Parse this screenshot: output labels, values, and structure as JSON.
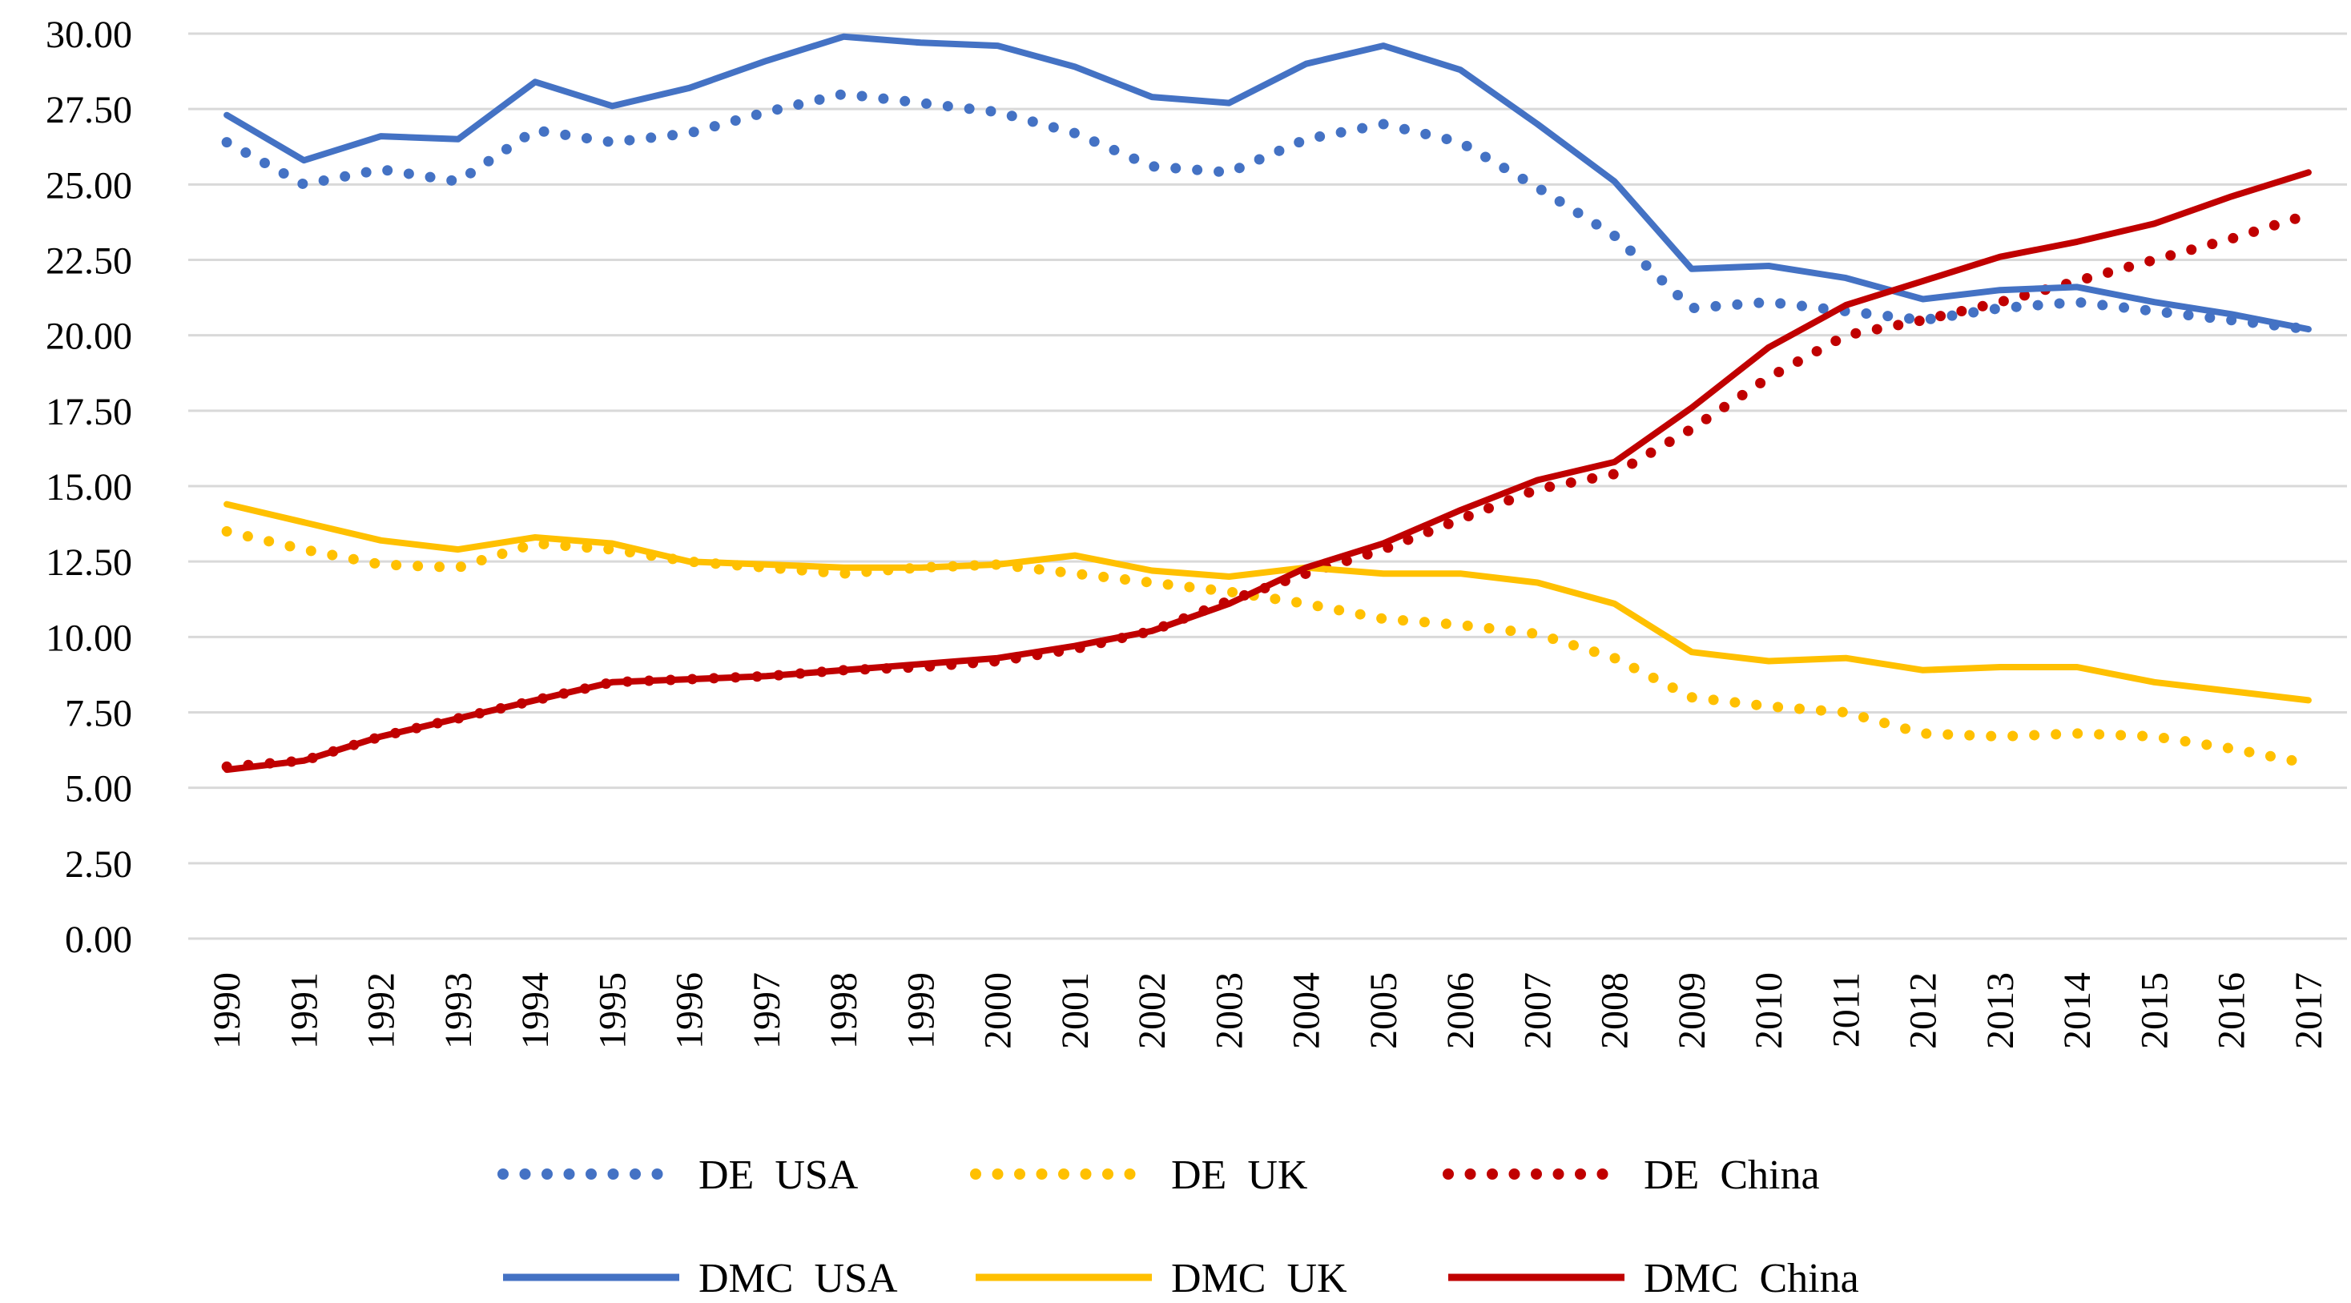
{
  "chart_data": {
    "type": "line",
    "title": "",
    "xlabel": "",
    "ylabel": "",
    "ylim": [
      0,
      30
    ],
    "y_ticks": [
      "0.00",
      "2.50",
      "5.00",
      "7.50",
      "10.00",
      "12.50",
      "15.00",
      "17.50",
      "20.00",
      "22.50",
      "25.00",
      "27.50",
      "30.00"
    ],
    "grid": "horizontal",
    "legend_position": "bottom",
    "x": [
      "1990",
      "1991",
      "1992",
      "1993",
      "1994",
      "1995",
      "1996",
      "1997",
      "1998",
      "1999",
      "2000",
      "2001",
      "2002",
      "2003",
      "2004",
      "2005",
      "2006",
      "2007",
      "2008",
      "2009",
      "2010",
      "2011",
      "2012",
      "2013",
      "2014",
      "2015",
      "2016",
      "2017"
    ],
    "series": [
      {
        "name": "DE  USA",
        "style": "dotted",
        "color": "#4472c4",
        "values": [
          26.4,
          25.0,
          25.5,
          25.1,
          26.8,
          26.4,
          26.7,
          27.4,
          28.0,
          27.7,
          27.4,
          26.7,
          25.6,
          25.4,
          26.5,
          27.0,
          26.4,
          24.9,
          23.3,
          20.9,
          21.1,
          20.8,
          20.5,
          20.9,
          21.1,
          20.8,
          20.5,
          20.2
        ]
      },
      {
        "name": "DE  UK",
        "style": "dotted",
        "color": "#ffc000",
        "values": [
          13.5,
          12.9,
          12.4,
          12.3,
          13.1,
          12.9,
          12.5,
          12.3,
          12.1,
          12.3,
          12.4,
          12.1,
          11.8,
          11.5,
          11.1,
          10.6,
          10.4,
          10.1,
          9.3,
          8.0,
          7.7,
          7.5,
          6.8,
          6.7,
          6.8,
          6.7,
          6.3,
          5.8
        ]
      },
      {
        "name": "DE  China",
        "style": "dotted",
        "color": "#c00000",
        "values": [
          5.7,
          5.9,
          6.7,
          7.3,
          7.9,
          8.5,
          8.6,
          8.7,
          8.9,
          9.0,
          9.2,
          9.6,
          10.2,
          11.2,
          12.1,
          12.9,
          13.9,
          14.9,
          15.4,
          16.9,
          18.6,
          20.0,
          20.5,
          21.1,
          21.8,
          22.5,
          23.2,
          24.0
        ]
      },
      {
        "name": "DMC  USA",
        "style": "solid",
        "color": "#4472c4",
        "values": [
          27.3,
          25.8,
          26.6,
          26.5,
          28.4,
          27.6,
          28.2,
          29.1,
          29.9,
          29.7,
          29.6,
          28.9,
          27.9,
          27.7,
          29.0,
          29.6,
          28.8,
          27.0,
          25.1,
          22.2,
          22.3,
          21.9,
          21.2,
          21.5,
          21.6,
          21.1,
          20.7,
          20.2
        ]
      },
      {
        "name": "DMC  UK",
        "style": "solid",
        "color": "#ffc000",
        "values": [
          14.4,
          13.8,
          13.2,
          12.9,
          13.3,
          13.1,
          12.5,
          12.4,
          12.3,
          12.3,
          12.4,
          12.7,
          12.2,
          12.0,
          12.3,
          12.1,
          12.1,
          11.8,
          11.1,
          9.5,
          9.2,
          9.3,
          8.9,
          9.0,
          9.0,
          8.5,
          8.2,
          7.9
        ]
      },
      {
        "name": "DMC  China",
        "style": "solid",
        "color": "#c00000",
        "values": [
          5.6,
          5.9,
          6.7,
          7.3,
          7.9,
          8.5,
          8.6,
          8.7,
          8.9,
          9.1,
          9.3,
          9.7,
          10.2,
          11.1,
          12.3,
          13.1,
          14.2,
          15.2,
          15.8,
          17.6,
          19.6,
          21.0,
          21.8,
          22.6,
          23.1,
          23.7,
          24.6,
          25.4
        ]
      }
    ]
  }
}
